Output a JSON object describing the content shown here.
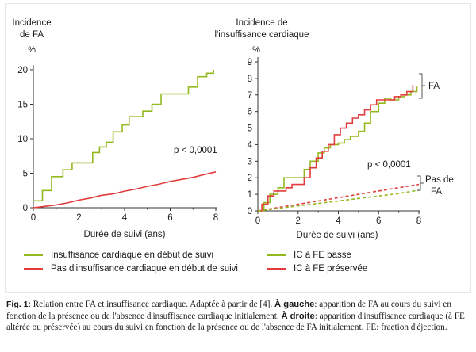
{
  "colors": {
    "green": "#93b91f",
    "red": "#e23c3c",
    "axis": "#333333"
  },
  "left_chart": {
    "ylabel_line1": "Incidence",
    "ylabel_line2": "de FA",
    "unit": "%",
    "xlabel": "Durée de suivi (ans)",
    "annotation": "p < 0,0001"
  },
  "right_chart": {
    "ylabel_line1": "Incidence de",
    "ylabel_line2": "l'insuffisance cardiaque",
    "unit": "%",
    "xlabel": "Durée de suivi (ans)",
    "annotation": "p < 0,0001",
    "bracket_fa": "FA",
    "bracket_no_fa_line1": "Pas de",
    "bracket_no_fa_line2": "FA"
  },
  "legend_left": [
    {
      "label": "Insuffisance cardiaque en début de suivi",
      "color": "#93b91f"
    },
    {
      "label": "Pas d'insuffisance cardiaque en début de suivi",
      "color": "#e23c3c"
    }
  ],
  "legend_right": [
    {
      "label": "IC à FE basse",
      "color": "#93b91f"
    },
    {
      "label": "IC à FE préservée",
      "color": "#e23c3c"
    }
  ],
  "caption": {
    "fig_label": "Fig. 1:",
    "t1": " Relation entre FA et insuffisance cardiaque. Adaptée à partir de [4]. ",
    "b1": "À gauche",
    "t2": ": apparition de FA au cours du suivi en fonction de la présence ou de l'absence d'insuffisance cardiaque initialement. ",
    "b2": "À droite",
    "t3": ": apparition d'insuffisance cardiaque (à FE altérée ou préservée) au cours du suivi en fonction de la présence ou de l'absence de FA initialement. FE: fraction d'éjection."
  },
  "chart_data": [
    {
      "type": "line",
      "xlabel": "Durée de suivi (ans)",
      "ylabel": "Incidence de FA (%)",
      "xlim": [
        0,
        8
      ],
      "ylim": [
        0,
        20
      ],
      "xticks": [
        0,
        2,
        4,
        6,
        8
      ],
      "yticks": [
        0,
        5,
        10,
        15,
        20
      ],
      "series": [
        {
          "name": "Insuffisance cardiaque en début de suivi",
          "color": "#93b91f",
          "step": true,
          "x": [
            0,
            0.4,
            0.8,
            1.3,
            1.7,
            2.2,
            2.6,
            2.9,
            3.2,
            3.5,
            3.6,
            3.9,
            4.2,
            4.4,
            4.8,
            5.2,
            5.6,
            6.0,
            6.4,
            6.8,
            7.2,
            7.4,
            7.6,
            7.9
          ],
          "y": [
            1.0,
            2.5,
            4.5,
            5.5,
            6.5,
            6.5,
            8.0,
            8.8,
            9.5,
            11.0,
            11.0,
            12.0,
            13.2,
            13.2,
            14.0,
            15.0,
            16.5,
            16.5,
            16.5,
            17.5,
            19.0,
            19.0,
            19.5,
            20.0
          ]
        },
        {
          "name": "Pas d'insuffisance cardiaque en début de suivi",
          "color": "#e23c3c",
          "step": false,
          "x": [
            0,
            0.5,
            1.0,
            1.5,
            2.0,
            2.5,
            3.0,
            3.5,
            4.0,
            4.5,
            5.0,
            5.5,
            6.0,
            6.5,
            7.0,
            7.5,
            8.0
          ],
          "y": [
            0,
            0.2,
            0.4,
            0.7,
            1.1,
            1.4,
            1.8,
            2.0,
            2.4,
            2.7,
            3.1,
            3.4,
            3.8,
            4.1,
            4.4,
            4.8,
            5.2
          ]
        }
      ]
    },
    {
      "type": "line",
      "xlabel": "Durée de suivi (ans)",
      "ylabel": "Incidence de l'insuffisance cardiaque (%)",
      "xlim": [
        0,
        8
      ],
      "ylim": [
        0,
        9
      ],
      "xticks": [
        0,
        2,
        4,
        6,
        8
      ],
      "yticks": [
        0,
        1,
        2,
        3,
        4,
        5,
        6,
        7,
        8,
        9
      ],
      "series": [
        {
          "name": "IC à FE basse",
          "color": "#93b91f",
          "step": true,
          "x": [
            0,
            0.3,
            0.6,
            1.0,
            1.3,
            1.6,
            2.0,
            2.3,
            2.6,
            3.0,
            3.3,
            3.6,
            4.0,
            4.3,
            4.6,
            5.0,
            5.3,
            5.6,
            6.0,
            6.3,
            6.6,
            7.0,
            7.3,
            7.6,
            7.9
          ],
          "y": [
            0,
            0.5,
            1.0,
            1.4,
            2.0,
            2.0,
            2.0,
            2.5,
            3.0,
            3.5,
            3.8,
            4.0,
            4.1,
            4.3,
            4.5,
            4.8,
            5.3,
            6.0,
            6.5,
            6.8,
            6.7,
            6.9,
            7.0,
            7.2,
            7.5
          ]
        },
        {
          "name": "IC à FE préservée",
          "color": "#e23c3c",
          "step": true,
          "x": [
            0,
            0.2,
            0.5,
            0.8,
            1.1,
            1.4,
            1.7,
            2.0,
            2.3,
            2.6,
            2.9,
            3.2,
            3.5,
            3.8,
            4.1,
            4.4,
            4.7,
            5.0,
            5.3,
            5.6,
            5.9,
            6.2,
            6.5,
            6.8,
            7.1,
            7.4,
            7.7
          ],
          "y": [
            0,
            0.4,
            0.9,
            1.2,
            1.2,
            1.4,
            1.6,
            1.6,
            2.0,
            2.6,
            3.2,
            3.6,
            4.0,
            4.6,
            5.0,
            5.3,
            5.6,
            5.8,
            6.1,
            6.4,
            6.7,
            6.7,
            6.7,
            6.9,
            7.0,
            7.2,
            7.6
          ]
        },
        {
          "name": "IC à FE préservée (Pas de FA)",
          "color": "#e23c3c",
          "dashed": true,
          "x": [
            0,
            1,
            2,
            3,
            4,
            5,
            6,
            7,
            8
          ],
          "y": [
            0,
            0.2,
            0.4,
            0.6,
            0.8,
            1.0,
            1.2,
            1.4,
            1.6
          ]
        },
        {
          "name": "IC à FE basse (Pas de FA)",
          "color": "#93b91f",
          "dashed": true,
          "x": [
            0,
            1,
            2,
            3,
            4,
            5,
            6,
            7,
            8
          ],
          "y": [
            0,
            0.15,
            0.3,
            0.45,
            0.6,
            0.75,
            0.9,
            1.05,
            1.25
          ]
        }
      ]
    }
  ]
}
